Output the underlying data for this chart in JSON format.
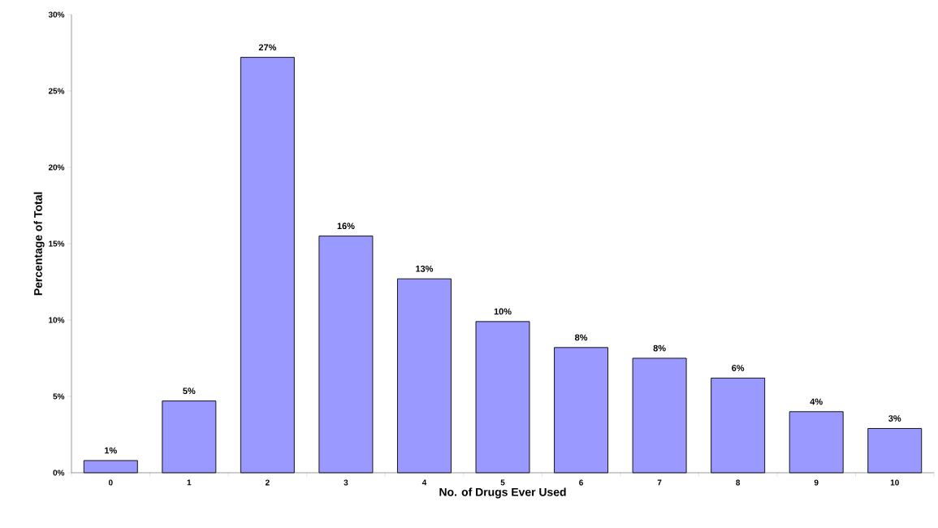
{
  "chart_data": {
    "type": "bar",
    "xlabel": "No. of Drugs Ever Used",
    "ylabel": "Percentage of Total",
    "categories": [
      "0",
      "1",
      "2",
      "3",
      "4",
      "5",
      "6",
      "7",
      "8",
      "9",
      "10"
    ],
    "values": [
      0.8,
      4.7,
      27.2,
      15.5,
      12.7,
      9.9,
      8.2,
      7.5,
      6.2,
      4.0,
      2.9
    ],
    "value_labels": [
      "1%",
      "5%",
      "27%",
      "16%",
      "13%",
      "10%",
      "8%",
      "8%",
      "6%",
      "4%",
      "3%"
    ],
    "color": "#9999ff",
    "ylim": [
      0,
      30
    ],
    "yticks": [
      {
        "value": 0,
        "label": "0%"
      },
      {
        "value": 5,
        "label": "5%"
      },
      {
        "value": 10,
        "label": "10%"
      },
      {
        "value": 15,
        "label": "15%"
      },
      {
        "value": 20,
        "label": "20%"
      },
      {
        "value": 25,
        "label": "25%"
      },
      {
        "value": 30,
        "label": "30%"
      }
    ],
    "grid": false
  }
}
